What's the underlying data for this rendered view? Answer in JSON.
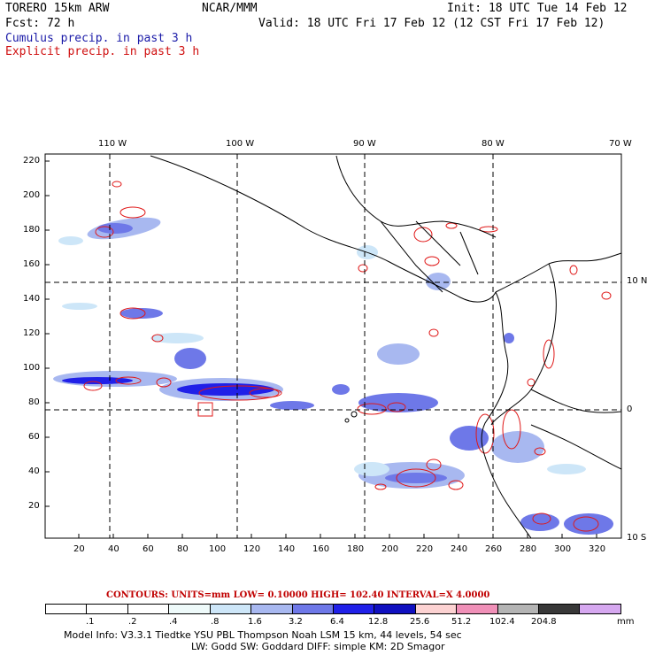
{
  "header": {
    "model": "TORERO  15km ARW",
    "org": "NCAR/MMM",
    "init": "Init: 18 UTC Tue 14 Feb 12",
    "fcst": "Fcst:   72 h",
    "valid": "Valid: 18 UTC Fri 17 Feb 12 (12 CST Fri 17 Feb 12)",
    "legend_cumulus": "Cumulus precip. in past 3 h",
    "legend_explicit": "Explicit precip. in past 3 h"
  },
  "map": {
    "lon_labels": [
      "110 W",
      "100 W",
      "90 W",
      "80 W",
      "70 W"
    ],
    "lat_labels": [
      "10 N",
      "0",
      "10 S"
    ],
    "y_ticks": [
      "220",
      "200",
      "180",
      "160",
      "140",
      "120",
      "100",
      "80",
      "60",
      "40",
      "20"
    ],
    "x_ticks": [
      "20",
      "40",
      "60",
      "80",
      "100",
      "120",
      "140",
      "160",
      "180",
      "200",
      "220",
      "240",
      "260",
      "280",
      "300",
      "320"
    ]
  },
  "contours": {
    "label": "CONTOURS:  UNITS=mm  LOW= 0.10000      HIGH=  102.40      INTERVAL=X  4.0000"
  },
  "colorbar": {
    "values": [
      ".1",
      ".2",
      ".4",
      ".8",
      "1.6",
      "3.2",
      "6.4",
      "12.8",
      "25.6",
      "51.2",
      "102.4",
      "204.8"
    ],
    "unit": "mm",
    "colors": [
      "#ffffff",
      "#ffffff",
      "#ffffff",
      "#eefafa",
      "#cde6f8",
      "#a8b8f0",
      "#6e78e8",
      "#2020e8",
      "#1010c0",
      "#fcd2d2",
      "#f090b8",
      "#b4b4b4",
      "#383838",
      "#d6a8f0"
    ]
  },
  "footer": {
    "line1": "Model Info: V3.3.1   Tiedtke YSU PBL  Thompson    Noah LSM  15 km,   44 levels,   54 sec",
    "line2": "LW: Godd SW: Goddard DIFF: simple KM: 2D Smagor"
  }
}
